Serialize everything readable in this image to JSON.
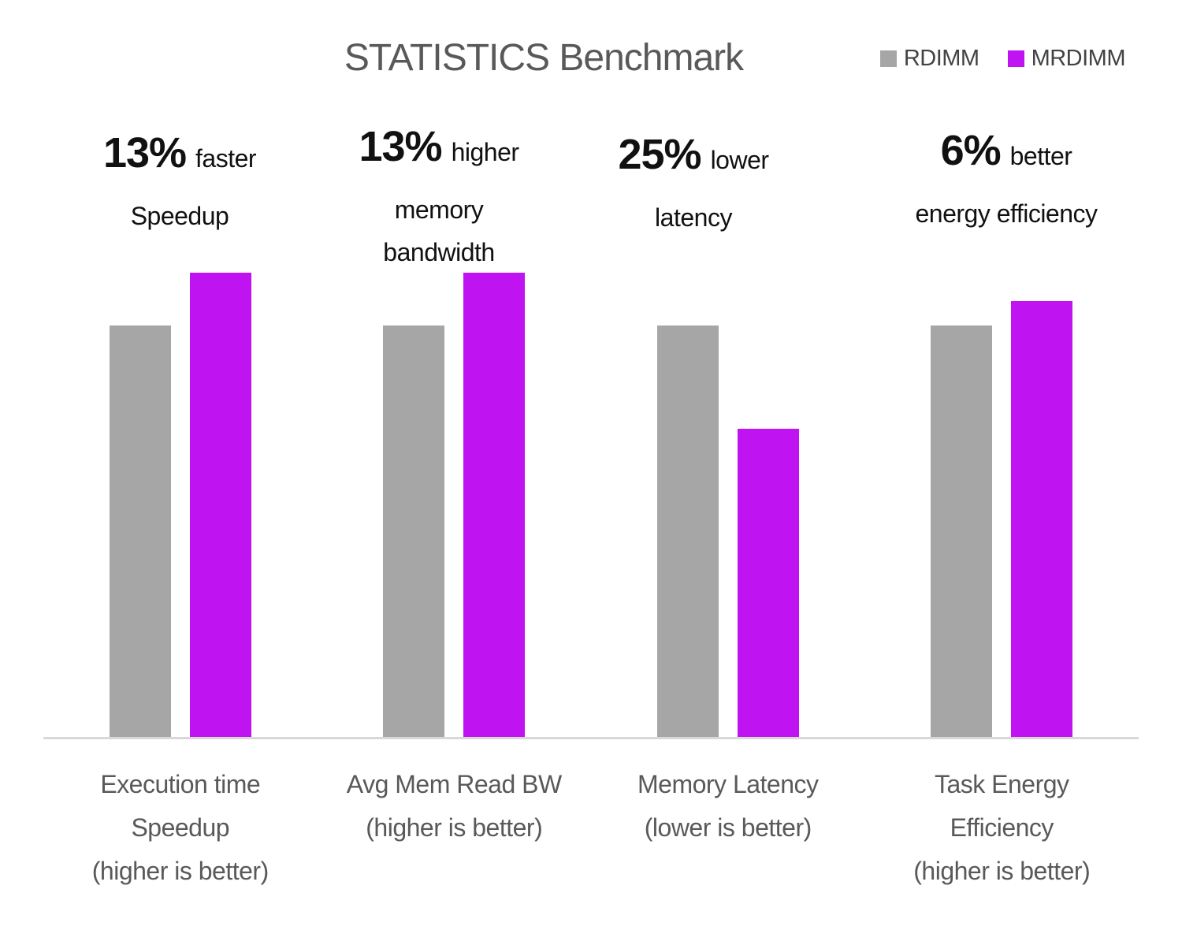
{
  "header": {
    "title": "STATISTICS Benchmark"
  },
  "colors": {
    "title": "#595959",
    "label": "#595959",
    "annotation": "#111111",
    "legend_text": "#434343",
    "axis_line": "#d8d8d8"
  },
  "chart_data": {
    "type": "bar",
    "title": "STATISTICS Benchmark",
    "categories": [
      "Execution time Speedup (higher is better)",
      "Avg Mem Read BW (higher is better)",
      "Memory Latency (lower is better)",
      "Task Energy Efficiency (higher is better)"
    ],
    "series": [
      {
        "name": "RDIMM",
        "color": "#a6a6a6",
        "values": [
          1.0,
          1.0,
          1.0,
          1.0
        ]
      },
      {
        "name": "MRDIMM",
        "color": "#c013f2",
        "values": [
          1.13,
          1.13,
          0.75,
          1.06
        ]
      }
    ],
    "annotations": [
      {
        "pct": "13%",
        "qualifier": "faster",
        "line2": "Speedup",
        "line3": ""
      },
      {
        "pct": "13%",
        "qualifier": "higher",
        "line2": "memory",
        "line3": "bandwidth"
      },
      {
        "pct": "25%",
        "qualifier": "lower",
        "line2": "latency",
        "line3": ""
      },
      {
        "pct": "6%",
        "qualifier": "better",
        "line2": "energy efficiency",
        "line3": ""
      }
    ],
    "ylim": [
      0,
      1.16
    ],
    "grid": false,
    "y_axis_hidden": true,
    "legend_position": "top-right"
  },
  "x_labels": [
    {
      "line1": "Execution time",
      "line2": "Speedup",
      "line3": "(higher is better)"
    },
    {
      "line1": "Avg Mem Read BW",
      "line2": "(higher is better)",
      "line3": ""
    },
    {
      "line1": "Memory Latency",
      "line2": "(lower is better)",
      "line3": ""
    },
    {
      "line1": "Task Energy",
      "line2": "Efficiency",
      "line3": "(higher is better)"
    }
  ]
}
